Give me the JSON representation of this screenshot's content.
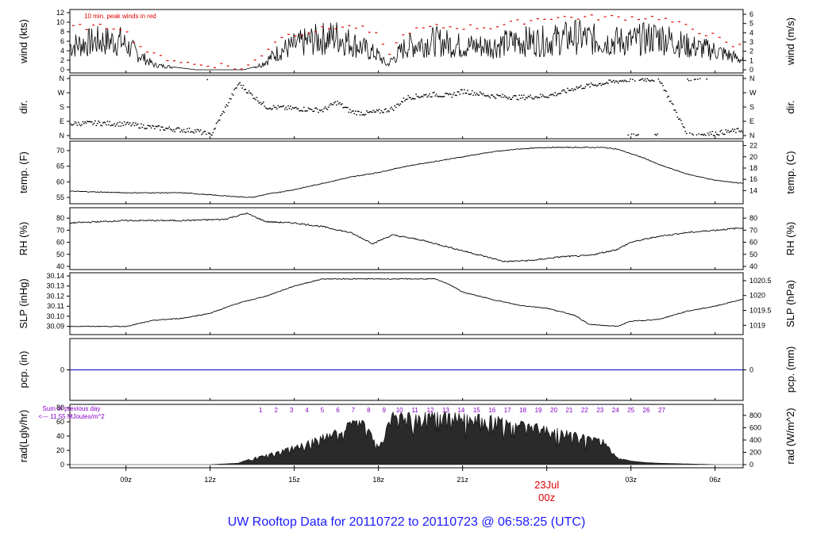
{
  "title": "UW Rooftop Data for 20110722  to  20110723 @ 06:58:25  (UTC)",
  "date_marker": {
    "day": "23Jul",
    "hour": "00z"
  },
  "colors": {
    "data": "#000000",
    "peak": "#e00000",
    "precip": "#0000cc",
    "note": "#8a00c8",
    "title": "#1a1aff",
    "date": "#e00000"
  },
  "chart_data": [
    {
      "type": "line",
      "name": "wind",
      "ylabel_left": "wind (kts)",
      "ylabel_right": "wind (m/s)",
      "ylim": [
        0,
        12
      ],
      "yticks_left": [
        "0",
        "2",
        "4",
        "6",
        "8",
        "10",
        "12"
      ],
      "yticks_right": [
        "0",
        "1",
        "2",
        "3",
        "4",
        "5",
        "6"
      ],
      "annotation": "10 min. peak winds in red",
      "x_hours": [
        7.0,
        8.0,
        8.8,
        9.5,
        10.0,
        10.8,
        11.5,
        12.5,
        13.2,
        13.8,
        14.5,
        15.5,
        16.5,
        17.3,
        18.0,
        18.3,
        19.0,
        20.0,
        21.0,
        22.0,
        23.0,
        24.0,
        25.0,
        26.0,
        27.0,
        28.0,
        29.0,
        30.0,
        30.5,
        31.0
      ],
      "values": [
        5,
        6,
        6,
        3,
        1,
        0.5,
        0,
        0,
        0,
        1,
        4,
        6,
        7,
        5,
        3,
        1,
        5,
        6,
        5,
        5,
        6,
        6,
        7,
        6,
        6,
        7,
        5,
        4,
        3,
        2
      ],
      "peaks": [
        9,
        9,
        9,
        5,
        3,
        2,
        1,
        1,
        0,
        3,
        7,
        8,
        9,
        9,
        7,
        3,
        8,
        9,
        9,
        9,
        10,
        11,
        11,
        11,
        11,
        11,
        9,
        7,
        5,
        5
      ]
    },
    {
      "type": "scatter",
      "name": "dir.",
      "ylabel_left": "dir.",
      "ylabel_right": "dir.",
      "yticks": [
        "N",
        "E",
        "S",
        "W",
        "N"
      ],
      "x_hours": [
        7.0,
        8.0,
        9.0,
        10.0,
        11.0,
        11.5,
        12.0,
        13.0,
        13.5,
        14.0,
        15.0,
        16.0,
        16.5,
        17.0,
        17.5,
        18.0,
        18.5,
        19.0,
        20.0,
        20.5,
        21.0,
        22.0,
        23.0,
        24.0,
        24.5,
        25.0,
        26.0,
        27.0,
        28.0,
        29.0,
        30.0,
        31.0
      ],
      "values_deg": [
        75,
        78,
        72,
        50,
        35,
        30,
        0,
        330,
        250,
        180,
        170,
        160,
        210,
        150,
        140,
        150,
        170,
        240,
        260,
        250,
        280,
        250,
        240,
        250,
        270,
        300,
        330,
        355,
        355,
        0,
        15,
        35
      ]
    },
    {
      "type": "line",
      "name": "temp",
      "ylabel_left": "temp. (F)",
      "ylabel_right": "temp. (C)",
      "ylim": [
        54,
        72
      ],
      "yticks_left": [
        "55",
        "60",
        "65",
        "70"
      ],
      "yticks_right": [
        "14",
        "16",
        "18",
        "20",
        "22"
      ],
      "x_hours": [
        7.0,
        9.0,
        11.0,
        12.5,
        13.5,
        14.0,
        15.0,
        16.0,
        17.0,
        18.0,
        19.0,
        20.0,
        21.0,
        22.0,
        23.0,
        24.0,
        25.0,
        26.0,
        26.5,
        27.0,
        27.5,
        28.0,
        29.0,
        30.0,
        31.0
      ],
      "values": [
        57,
        56.5,
        56.5,
        55.5,
        55,
        56,
        57.5,
        59.5,
        61.5,
        63,
        65,
        66.5,
        68,
        69.5,
        70.5,
        71,
        71,
        71,
        70.5,
        69,
        67.5,
        65.5,
        62.5,
        60.5,
        59.5
      ]
    },
    {
      "type": "line",
      "name": "RH",
      "ylabel_left": "RH (%)",
      "ylabel_right": "RH (%)",
      "ylim": [
        40,
        86
      ],
      "yticks_left": [
        "40",
        "50",
        "60",
        "70",
        "80"
      ],
      "yticks_right": [
        "40",
        "50",
        "60",
        "70",
        "80"
      ],
      "x_hours": [
        7.0,
        9.0,
        11.0,
        12.5,
        13.3,
        14.0,
        15.0,
        16.0,
        17.0,
        17.8,
        18.5,
        19.5,
        20.5,
        21.5,
        22.5,
        23.5,
        24.5,
        25.5,
        26.5,
        27.0,
        28.0,
        29.0,
        30.0,
        31.0
      ],
      "values": [
        76,
        78,
        78,
        79,
        84,
        77,
        76,
        73,
        68,
        59,
        66,
        62,
        56,
        50,
        44,
        45,
        48,
        49,
        54,
        60,
        65,
        68,
        70,
        72
      ]
    },
    {
      "type": "line",
      "name": "SLP",
      "ylabel_left": "SLP (inHg)",
      "ylabel_right": "SLP (hPa)",
      "ylim": [
        30.085,
        30.14
      ],
      "yticks_left": [
        "30.09",
        "30.10",
        "30.11",
        "30.12",
        "30.13",
        "30.14"
      ],
      "yticks_right": [
        "1019",
        "1019.5",
        "1020",
        "1020.5"
      ],
      "x_hours": [
        7.0,
        9.0,
        10.0,
        11.0,
        12.0,
        13.0,
        14.0,
        15.0,
        16.0,
        17.0,
        18.0,
        19.0,
        20.0,
        20.5,
        21.0,
        22.0,
        23.0,
        24.0,
        25.0,
        25.5,
        26.5,
        27.0,
        28.0,
        29.0,
        30.0,
        31.0
      ],
      "values": [
        30.09,
        30.09,
        30.096,
        30.098,
        30.103,
        30.113,
        30.12,
        30.13,
        30.137,
        30.137,
        30.137,
        30.137,
        30.137,
        30.132,
        30.124,
        30.117,
        30.111,
        30.108,
        30.101,
        30.092,
        30.09,
        30.095,
        30.097,
        30.105,
        30.11,
        30.117
      ]
    },
    {
      "type": "line",
      "name": "pcp",
      "ylabel_left": "pcp. (in)",
      "ylabel_right": "pcp. (mm)",
      "yticks_left": [
        "0"
      ],
      "yticks_right": [
        "0"
      ],
      "x_hours": [
        7.0,
        31.0
      ],
      "values": [
        0,
        0
      ]
    },
    {
      "type": "area",
      "name": "rad",
      "ylabel_left": "rad(Lgly/hr)",
      "ylabel_right": "rad (W/m^2)",
      "ylim": [
        0,
        80
      ],
      "yticks_left": [
        "0",
        "20",
        "40",
        "60",
        "80"
      ],
      "yticks_right": [
        "0",
        "200",
        "400",
        "600",
        "800"
      ],
      "note_line1": "Sum of previous day",
      "note_line2": "<--- 11.55 MJoules/m^2",
      "hour_labels": [
        "1",
        "2",
        "3",
        "4",
        "5",
        "6",
        "7",
        "8",
        "9",
        "10",
        "11",
        "12",
        "13",
        "14",
        "15",
        "16",
        "17",
        "18",
        "19",
        "20",
        "21",
        "22",
        "23",
        "24",
        "25",
        "26",
        "27"
      ],
      "x_hours": [
        12.0,
        13.0,
        13.7,
        14.5,
        15.5,
        16.5,
        17.0,
        17.5,
        18.0,
        18.5,
        19.0,
        20.0,
        21.0,
        22.0,
        23.0,
        24.0,
        25.0,
        26.0,
        26.5,
        27.0,
        27.5,
        28.0,
        29.0,
        30.0,
        31.0
      ],
      "values": [
        0,
        2,
        12,
        20,
        35,
        50,
        62,
        62,
        25,
        75,
        75,
        75,
        73,
        70,
        62,
        55,
        46,
        37,
        10,
        5,
        3,
        2,
        1,
        0,
        0
      ]
    }
  ],
  "x_axis": {
    "range_hours": [
      7.0,
      31.0
    ],
    "ticks": [
      {
        "hour": 9,
        "label": "09z"
      },
      {
        "hour": 12,
        "label": "12z"
      },
      {
        "hour": 15,
        "label": "15z"
      },
      {
        "hour": 18,
        "label": "18z"
      },
      {
        "hour": 21,
        "label": "21z"
      },
      {
        "hour": 24,
        "label": ""
      },
      {
        "hour": 27,
        "label": "03z"
      },
      {
        "hour": 30,
        "label": "06z"
      }
    ]
  }
}
